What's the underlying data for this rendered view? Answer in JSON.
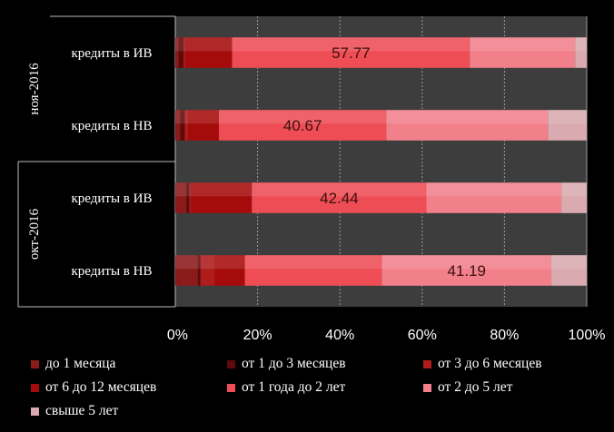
{
  "chart_data": {
    "type": "bar",
    "orientation": "horizontal",
    "stacked": "percent",
    "xlim": [
      0,
      100
    ],
    "x_ticks": [
      "0%",
      "20%",
      "40%",
      "60%",
      "80%",
      "100%"
    ],
    "grid": true,
    "legend_position": "bottom",
    "groups": [
      {
        "label": "ноя-2016",
        "bars": [
          {
            "label": "кредиты в ИВ",
            "values": [
              0.8,
              1.2,
              0.4,
              11.4,
              57.77,
              25.6,
              2.83
            ],
            "data_label": "57.77"
          },
          {
            "label": "кредиты в НВ",
            "values": [
              1.2,
              1.1,
              0.8,
              7.5,
              40.67,
              39.3,
              9.43
            ],
            "data_label": "40.67"
          }
        ]
      },
      {
        "label": "окт-2016",
        "bars": [
          {
            "label": "кредиты в ИВ",
            "values": [
              2.7,
              0.7,
              0.4,
              14.8,
              42.44,
              32.8,
              6.16
            ],
            "data_label": "42.44"
          },
          {
            "label": "кредиты в НВ",
            "values": [
              5.5,
              0.6,
              3.5,
              7.3,
              33.31,
              41.19,
              8.6
            ],
            "data_label": "41.19"
          }
        ]
      }
    ],
    "series": [
      {
        "name": "до 1 месяца",
        "color": "#8b1a1a"
      },
      {
        "name": "от 1 до 3 месяцев",
        "color": "#5e0a0a"
      },
      {
        "name": "от 3 до 6 месяцев",
        "color": "#b01b1b"
      },
      {
        "name": "от 6 до 12 месяцев",
        "color": "#a50b0b"
      },
      {
        "name": "от 1 года до 2 лет",
        "color": "#ee4d55"
      },
      {
        "name": "от 2 до 5 лет",
        "color": "#f2808a"
      },
      {
        "name": "свыше 5 лет",
        "color": "#d9aaaf"
      }
    ]
  }
}
